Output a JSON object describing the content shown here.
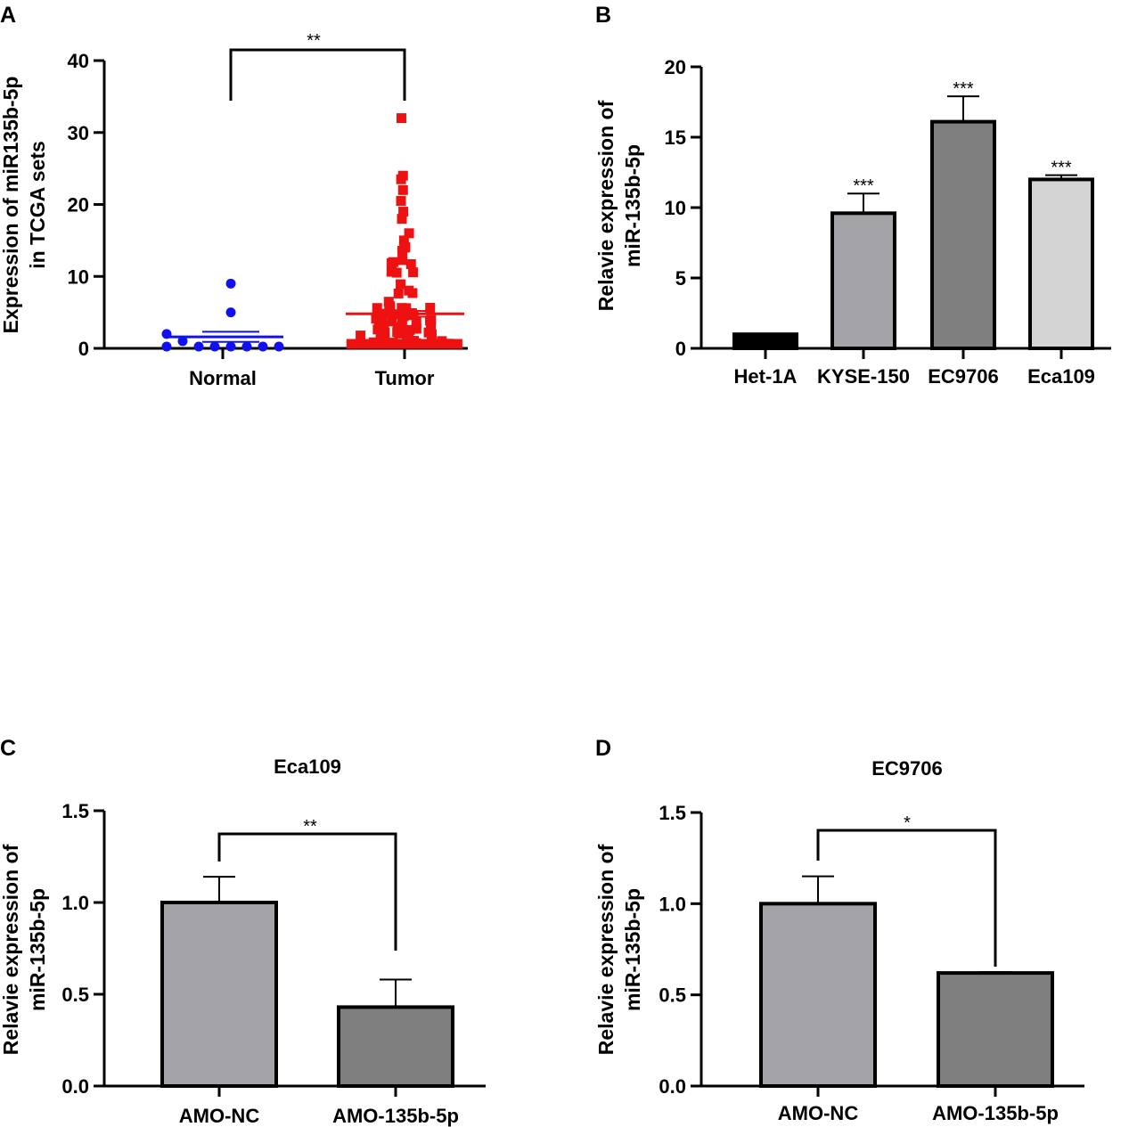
{
  "colors": {
    "normal": "#1010f0",
    "tumor": "#ee1111",
    "het1a": "#000000",
    "kyse150": "#a3a3a8",
    "ec9706": "#7f7f7f",
    "eca109": "#d4d4d4",
    "amo_nc": "#a3a3a8",
    "amo_135": "#7f7f7f"
  },
  "chart_data": [
    {
      "panel": "A",
      "type": "scatter",
      "title": "",
      "ylabel": [
        "Expression of miR135b-5p",
        "in TCGA sets"
      ],
      "ylim": [
        0,
        40
      ],
      "yticks": [
        "0",
        "10",
        "20",
        "30",
        "40"
      ],
      "categories": [
        "Normal",
        "Tumor"
      ],
      "series": [
        {
          "name": "Normal",
          "mean": 1.6,
          "sem": 0.7,
          "points": [
            9.0,
            5.0,
            2.0,
            1.0,
            0.2,
            0.1,
            0.1,
            0.1,
            0.1,
            0.1,
            0.1
          ]
        },
        {
          "name": "Tumor",
          "mean": 4.8,
          "sem": 0.4,
          "max": 32,
          "n": 185
        }
      ],
      "significance": "**"
    },
    {
      "panel": "B",
      "type": "bar",
      "title": "",
      "ylabel": [
        "Relavie expression of",
        "miR-135b-5p"
      ],
      "ylim": [
        0,
        20
      ],
      "yticks": [
        "0",
        "5",
        "10",
        "15",
        "20"
      ],
      "categories": [
        "Het-1A",
        "KYSE-150",
        "EC9706",
        "Eca109"
      ],
      "values": [
        1.0,
        9.6,
        16.1,
        12.0
      ],
      "errors": [
        0,
        1.4,
        1.8,
        0.3
      ],
      "significance": [
        "",
        "***",
        "***",
        "***"
      ]
    },
    {
      "panel": "C",
      "type": "bar",
      "title": "Eca109",
      "ylabel": [
        "Relavie expression of",
        "miR-135b-5p"
      ],
      "ylim": [
        0,
        1.5
      ],
      "yticks": [
        "0.0",
        "0.5",
        "1.0",
        "1.5"
      ],
      "categories": [
        "AMO-NC",
        "AMO-135b-5p"
      ],
      "values": [
        1.0,
        0.43
      ],
      "errors": [
        0.14,
        0.15
      ],
      "significance": "**"
    },
    {
      "panel": "D",
      "type": "bar",
      "title": "EC9706",
      "ylabel": [
        "Relavie expression of",
        "miR-135b-5p"
      ],
      "ylim": [
        0,
        1.5
      ],
      "yticks": [
        "0.0",
        "0.5",
        "1.0",
        "1.5"
      ],
      "categories": [
        "AMO-NC",
        "AMO-135b-5p"
      ],
      "values": [
        1.0,
        0.62
      ],
      "errors": [
        0.15,
        0.005
      ],
      "significance": "*"
    }
  ]
}
